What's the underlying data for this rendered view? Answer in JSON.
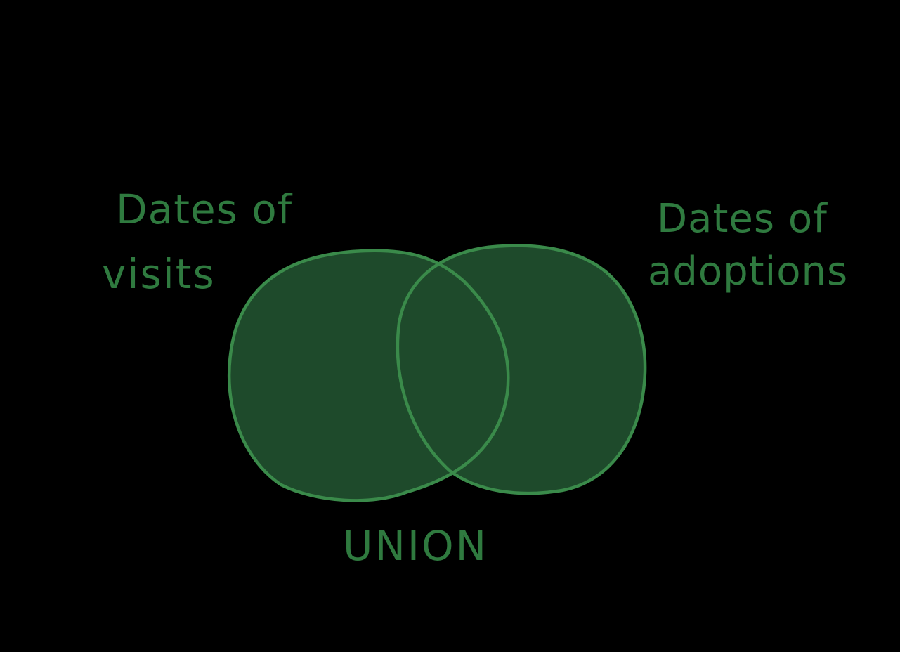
{
  "diagram": {
    "type": "venn",
    "sets": [
      {
        "label_line1": "Dates of",
        "label_line2": "visits"
      },
      {
        "label_line1": "Dates of",
        "label_line2": "adoptions"
      }
    ],
    "operation_label": "UNION",
    "colors": {
      "background": "#000000",
      "fill": "#1e4a2b",
      "stroke": "#3a8a4a",
      "text": "#2f7a3f"
    }
  }
}
